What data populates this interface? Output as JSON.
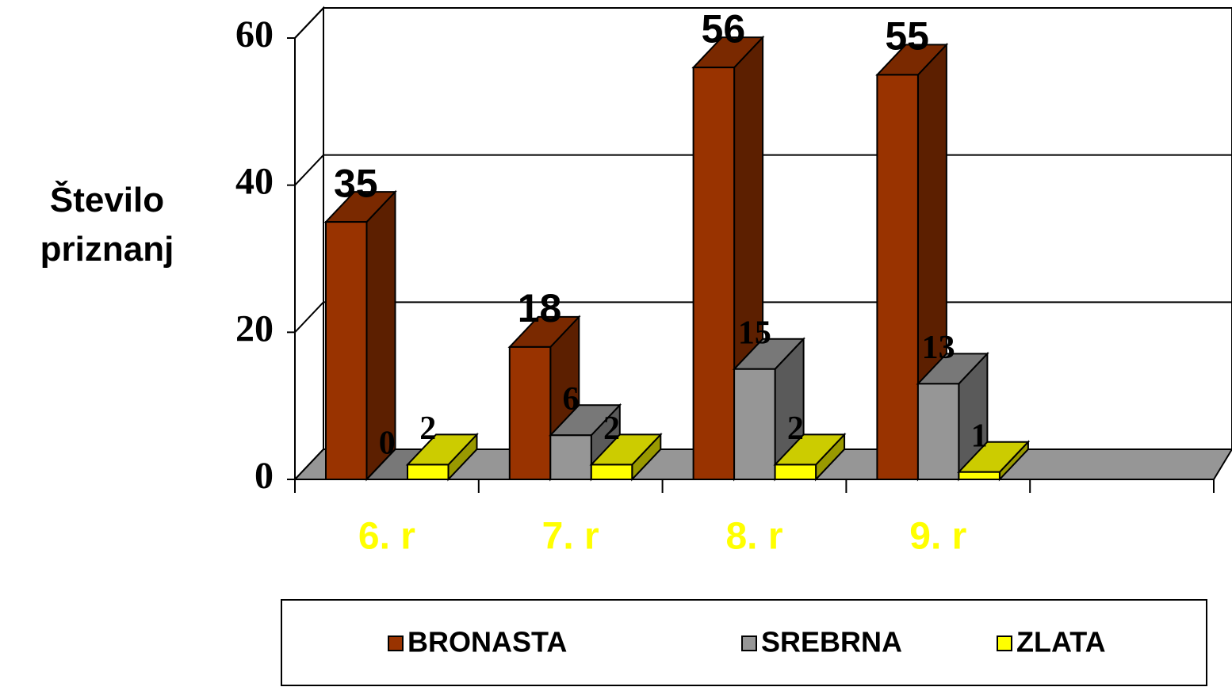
{
  "chart_data": {
    "type": "bar3d",
    "y_label": "Število priznanj",
    "categories": [
      "6. r",
      "7. r",
      "8. r",
      "9. r",
      null
    ],
    "series": [
      {
        "name": "BRONASTA",
        "color": "#993300",
        "values": [
          35,
          18,
          56,
          55,
          null
        ]
      },
      {
        "name": "SREBRNA",
        "color": "#969696",
        "values": [
          0,
          6,
          15,
          13,
          null
        ]
      },
      {
        "name": "ZLATA",
        "color": "#ffff00",
        "values": [
          2,
          2,
          2,
          1,
          null
        ]
      }
    ],
    "ylim": [
      0,
      60
    ],
    "yticks": [
      0,
      20,
      40,
      60
    ],
    "grid": true,
    "legend": "bottom"
  }
}
